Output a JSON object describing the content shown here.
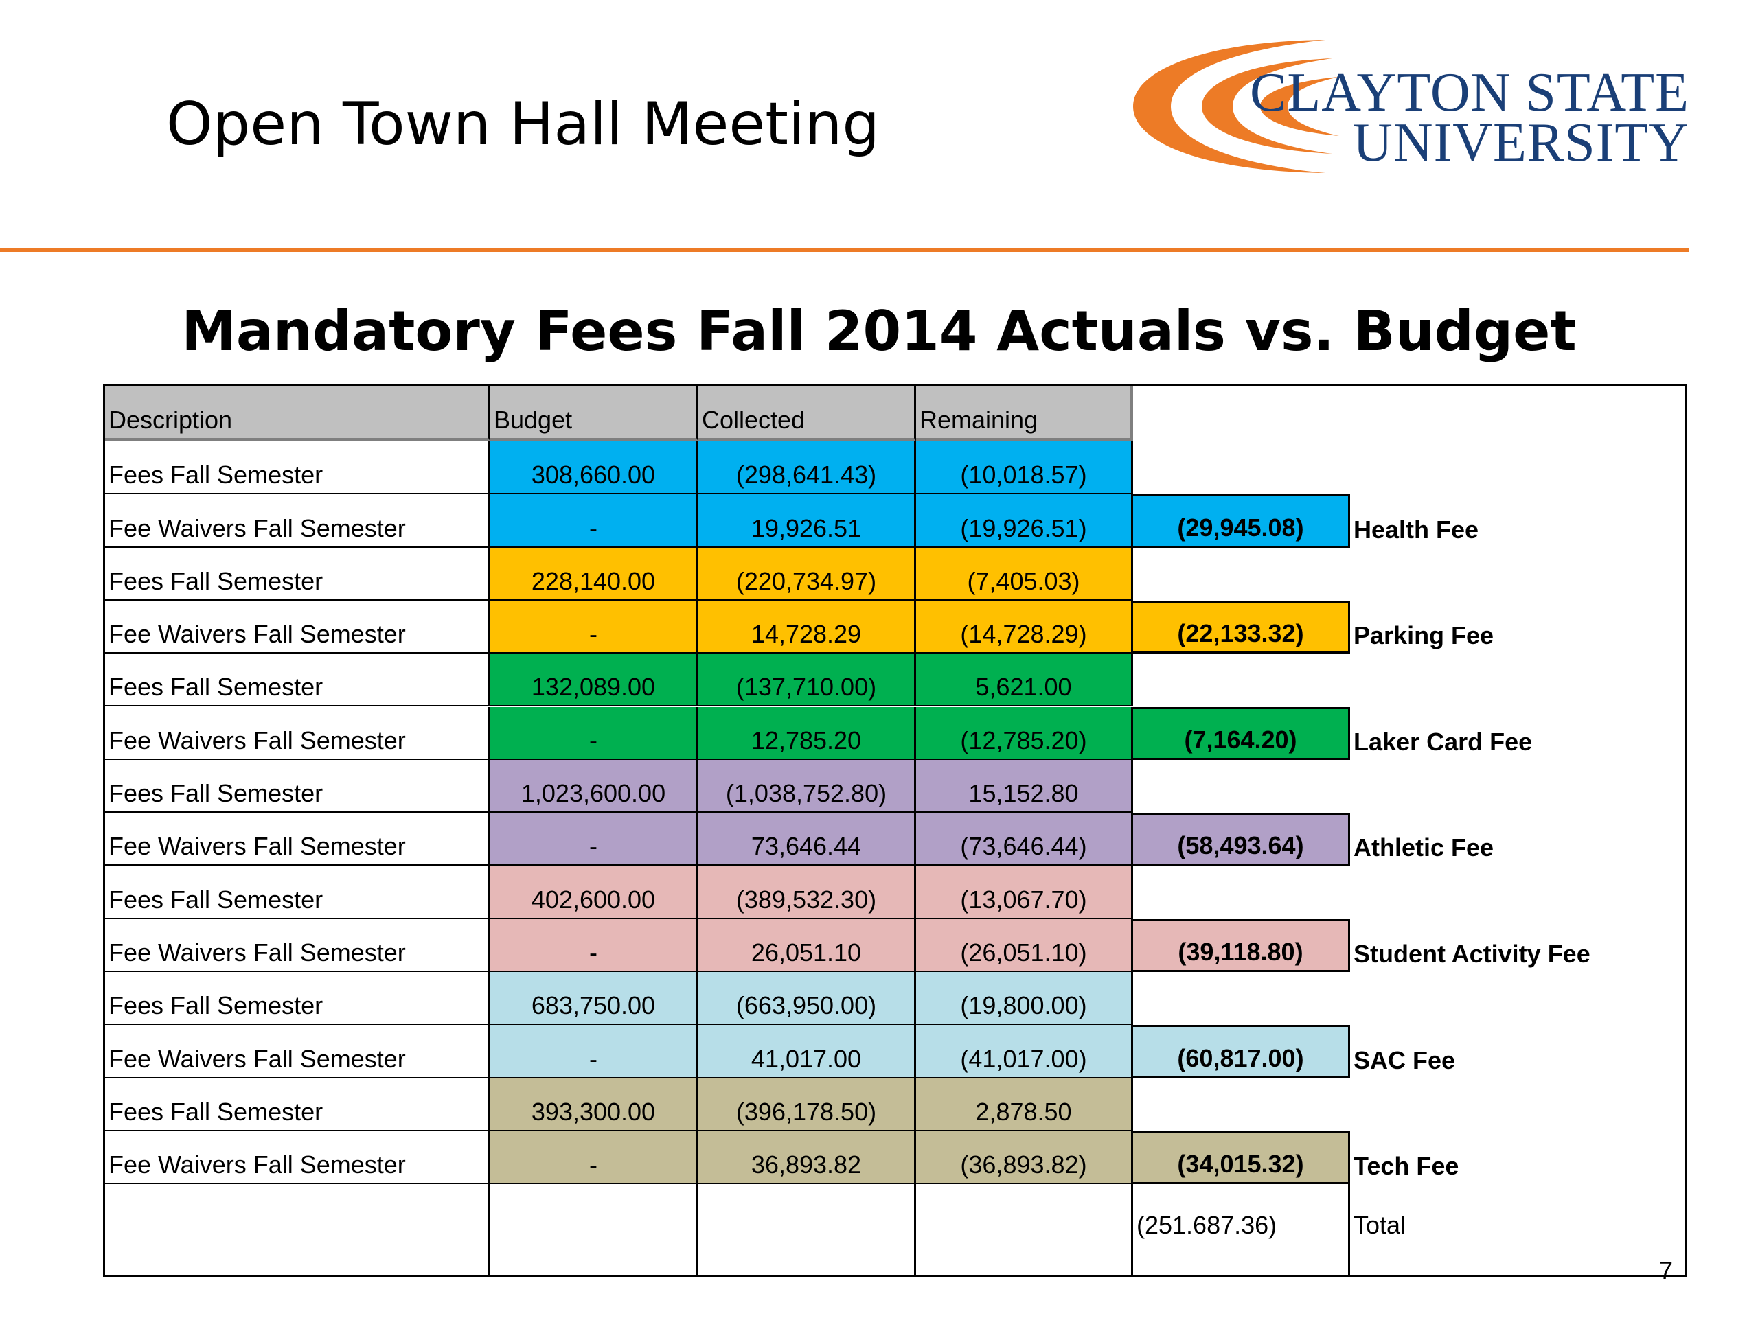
{
  "header": {
    "title": "Open Town Hall Meeting",
    "logo": {
      "line1": "CLAYTON STATE",
      "line2": "UNIVERSITY",
      "accent_color": "#ed7b26",
      "text_color": "#1a3f77"
    }
  },
  "slide": {
    "title": "Mandatory Fees Fall 2014 Actuals vs. Budget",
    "page_number": "7"
  },
  "table": {
    "columns": [
      "Description",
      "Budget",
      "Collected",
      "Remaining"
    ],
    "groups": [
      {
        "fee": "Health Fee",
        "color": "#00b0f0",
        "net": "(29,945.08)",
        "rows": [
          {
            "description": "Fees Fall Semester",
            "budget": "308,660.00",
            "collected": "(298,641.43)",
            "remaining": "(10,018.57)"
          },
          {
            "description": "Fee Waivers Fall Semester",
            "budget": "-",
            "collected": "19,926.51",
            "remaining": "(19,926.51)"
          }
        ]
      },
      {
        "fee": "Parking Fee",
        "color": "#ffc000",
        "net": "(22,133.32)",
        "rows": [
          {
            "description": "Fees Fall Semester",
            "budget": "228,140.00",
            "collected": "(220,734.97)",
            "remaining": "(7,405.03)"
          },
          {
            "description": "Fee Waivers Fall Semester",
            "budget": "-",
            "collected": "14,728.29",
            "remaining": "(14,728.29)"
          }
        ]
      },
      {
        "fee": "Laker Card Fee",
        "color": "#00b050",
        "net": "(7,164.20)",
        "rows": [
          {
            "description": "Fees Fall Semester",
            "budget": "132,089.00",
            "collected": "(137,710.00)",
            "remaining": "5,621.00"
          },
          {
            "description": "Fee Waivers Fall Semester",
            "budget": "-",
            "collected": "12,785.20",
            "remaining": "(12,785.20)"
          }
        ]
      },
      {
        "fee": "Athletic Fee",
        "color": "#b1a0c7",
        "net": "(58,493.64)",
        "rows": [
          {
            "description": "Fees Fall Semester",
            "budget": "1,023,600.00",
            "collected": "(1,038,752.80)",
            "remaining": "15,152.80"
          },
          {
            "description": "Fee Waivers Fall Semester",
            "budget": "-",
            "collected": "73,646.44",
            "remaining": "(73,646.44)"
          }
        ]
      },
      {
        "fee": "Student Activity Fee",
        "color": "#e6b8b7",
        "net": "(39,118.80)",
        "rows": [
          {
            "description": "Fees Fall Semester",
            "budget": "402,600.00",
            "collected": "(389,532.30)",
            "remaining": "(13,067.70)"
          },
          {
            "description": "Fee Waivers Fall Semester",
            "budget": "-",
            "collected": "26,051.10",
            "remaining": "(26,051.10)"
          }
        ]
      },
      {
        "fee": "SAC Fee",
        "color": "#b7dee8",
        "net": "(60,817.00)",
        "rows": [
          {
            "description": "Fees Fall Semester",
            "budget": "683,750.00",
            "collected": "(663,950.00)",
            "remaining": "(19,800.00)"
          },
          {
            "description": "Fee Waivers Fall Semester",
            "budget": "-",
            "collected": "41,017.00",
            "remaining": "(41,017.00)"
          }
        ]
      },
      {
        "fee": "Tech Fee",
        "color": "#c4bd97",
        "net": "(34,015.32)",
        "rows": [
          {
            "description": "Fees Fall Semester",
            "budget": "393,300.00",
            "collected": "(396,178.50)",
            "remaining": "2,878.50"
          },
          {
            "description": "Fee Waivers Fall Semester",
            "budget": "-",
            "collected": "36,893.82",
            "remaining": "(36,893.82)"
          }
        ]
      }
    ],
    "total": {
      "value": "(251.687.36)",
      "label": "Total"
    }
  }
}
